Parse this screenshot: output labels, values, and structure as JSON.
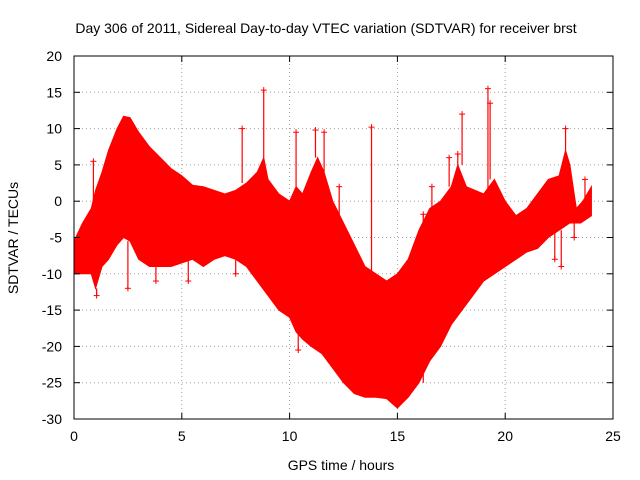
{
  "chart_data": {
    "type": "scatter",
    "title": "Day 306 of 2011, Sidereal Day-to-day VTEC variation (SDTVAR) for receiver brst",
    "xlabel": "GPS time / hours",
    "ylabel": "SDTVAR / TECUs",
    "xlim": [
      0,
      25
    ],
    "ylim": [
      -30,
      20
    ],
    "grid": true,
    "marker": "+",
    "color": "#ff0000",
    "x_ticks": [
      {
        "value": 0,
        "label": "0"
      },
      {
        "value": 5,
        "label": "5"
      },
      {
        "value": 10,
        "label": "10"
      },
      {
        "value": 15,
        "label": "15"
      },
      {
        "value": 20,
        "label": "20"
      },
      {
        "value": 25,
        "label": "25"
      }
    ],
    "y_ticks": [
      {
        "value": 20,
        "label": "20"
      },
      {
        "value": 15,
        "label": "15"
      },
      {
        "value": 10,
        "label": "10"
      },
      {
        "value": 5,
        "label": "5"
      },
      {
        "value": 0,
        "label": "0"
      },
      {
        "value": -5,
        "label": "-5"
      },
      {
        "value": -10,
        "label": "-10"
      },
      {
        "value": -15,
        "label": "-15"
      },
      {
        "value": -20,
        "label": "-20"
      },
      {
        "value": -25,
        "label": "-25"
      },
      {
        "value": -30,
        "label": "-30"
      }
    ],
    "envelope": {
      "upper": [
        [
          0,
          -5.5
        ],
        [
          0.4,
          -3
        ],
        [
          0.8,
          -1
        ],
        [
          1.0,
          1.5
        ],
        [
          1.3,
          4
        ],
        [
          1.6,
          7
        ],
        [
          2.0,
          10
        ],
        [
          2.3,
          11.7
        ],
        [
          2.6,
          11.5
        ],
        [
          3.0,
          9.5
        ],
        [
          3.5,
          7.5
        ],
        [
          4.0,
          6
        ],
        [
          4.5,
          4.5
        ],
        [
          5.0,
          3.5
        ],
        [
          5.5,
          2.2
        ],
        [
          6.0,
          2
        ],
        [
          6.5,
          1.5
        ],
        [
          7.0,
          1
        ],
        [
          7.5,
          1.5
        ],
        [
          8.0,
          2.5
        ],
        [
          8.5,
          4
        ],
        [
          8.8,
          6
        ],
        [
          9.0,
          3
        ],
        [
          9.5,
          1
        ],
        [
          10.0,
          0
        ],
        [
          10.3,
          2
        ],
        [
          10.6,
          1
        ],
        [
          11.0,
          4
        ],
        [
          11.3,
          6
        ],
        [
          11.6,
          4
        ],
        [
          12.0,
          0
        ],
        [
          12.5,
          -3
        ],
        [
          13.0,
          -6
        ],
        [
          13.5,
          -9
        ],
        [
          14.0,
          -10
        ],
        [
          14.5,
          -11
        ],
        [
          15.0,
          -10
        ],
        [
          15.5,
          -8
        ],
        [
          16.0,
          -4
        ],
        [
          16.5,
          -1
        ],
        [
          17.0,
          0
        ],
        [
          17.5,
          2
        ],
        [
          17.8,
          5
        ],
        [
          18.2,
          2
        ],
        [
          19.0,
          1
        ],
        [
          19.5,
          3
        ],
        [
          20.0,
          0
        ],
        [
          20.5,
          -2
        ],
        [
          21.0,
          -1
        ],
        [
          21.5,
          1
        ],
        [
          22.0,
          3
        ],
        [
          22.5,
          3.5
        ],
        [
          22.8,
          7
        ],
        [
          23.0,
          5
        ],
        [
          23.3,
          -1
        ],
        [
          23.6,
          0
        ],
        [
          24.0,
          2
        ]
      ],
      "lower": [
        [
          0,
          -10
        ],
        [
          0.4,
          -10
        ],
        [
          0.8,
          -10
        ],
        [
          1.0,
          -12
        ],
        [
          1.3,
          -9
        ],
        [
          1.6,
          -8
        ],
        [
          2.0,
          -6
        ],
        [
          2.3,
          -5
        ],
        [
          2.6,
          -5.5
        ],
        [
          3.0,
          -8
        ],
        [
          3.5,
          -9
        ],
        [
          4.0,
          -9
        ],
        [
          4.5,
          -9
        ],
        [
          5.0,
          -8.5
        ],
        [
          5.5,
          -8
        ],
        [
          6.0,
          -9
        ],
        [
          6.5,
          -8
        ],
        [
          7.0,
          -7.5
        ],
        [
          7.5,
          -8
        ],
        [
          8.0,
          -9
        ],
        [
          8.5,
          -11
        ],
        [
          9.0,
          -13
        ],
        [
          9.5,
          -15
        ],
        [
          10.0,
          -16
        ],
        [
          10.3,
          -18
        ],
        [
          10.6,
          -19
        ],
        [
          11.0,
          -20
        ],
        [
          11.5,
          -21
        ],
        [
          12.0,
          -23
        ],
        [
          12.5,
          -25
        ],
        [
          13.0,
          -26.5
        ],
        [
          13.5,
          -27
        ],
        [
          14.0,
          -27
        ],
        [
          14.5,
          -27.2
        ],
        [
          15.0,
          -28.5
        ],
        [
          15.5,
          -27
        ],
        [
          16.0,
          -25
        ],
        [
          16.5,
          -22
        ],
        [
          17.0,
          -20
        ],
        [
          17.5,
          -17
        ],
        [
          18.0,
          -15
        ],
        [
          18.5,
          -13
        ],
        [
          19.0,
          -11
        ],
        [
          19.5,
          -10
        ],
        [
          20.0,
          -9
        ],
        [
          20.5,
          -8
        ],
        [
          21.0,
          -7
        ],
        [
          21.5,
          -6.5
        ],
        [
          22.0,
          -5
        ],
        [
          22.5,
          -4
        ],
        [
          23.0,
          -3
        ],
        [
          23.5,
          -3
        ],
        [
          24.0,
          -2
        ]
      ]
    },
    "spikes": [
      {
        "x": 0.9,
        "y": 5.5
      },
      {
        "x": 1.05,
        "y": -13
      },
      {
        "x": 2.5,
        "y": -12
      },
      {
        "x": 3.8,
        "y": -11
      },
      {
        "x": 5.3,
        "y": -11
      },
      {
        "x": 7.5,
        "y": -10
      },
      {
        "x": 7.8,
        "y": 10
      },
      {
        "x": 8.8,
        "y": 15.3
      },
      {
        "x": 10.3,
        "y": 9.5
      },
      {
        "x": 10.4,
        "y": -20.5
      },
      {
        "x": 11.2,
        "y": 9.8
      },
      {
        "x": 11.6,
        "y": 9.5
      },
      {
        "x": 12.3,
        "y": 2
      },
      {
        "x": 13.8,
        "y": 10.2
      },
      {
        "x": 14.2,
        "y": -13
      },
      {
        "x": 14.6,
        "y": -17
      },
      {
        "x": 16.2,
        "y": -1.8
      },
      {
        "x": 16.6,
        "y": 2
      },
      {
        "x": 17.0,
        "y": -18
      },
      {
        "x": 17.4,
        "y": 6
      },
      {
        "x": 17.8,
        "y": 6.5
      },
      {
        "x": 18.0,
        "y": 12
      },
      {
        "x": 19.2,
        "y": 15.5
      },
      {
        "x": 19.3,
        "y": 13.5
      },
      {
        "x": 22.3,
        "y": -8
      },
      {
        "x": 22.6,
        "y": -9
      },
      {
        "x": 22.8,
        "y": 10
      },
      {
        "x": 23.2,
        "y": -5
      },
      {
        "x": 23.7,
        "y": 3
      }
    ]
  }
}
